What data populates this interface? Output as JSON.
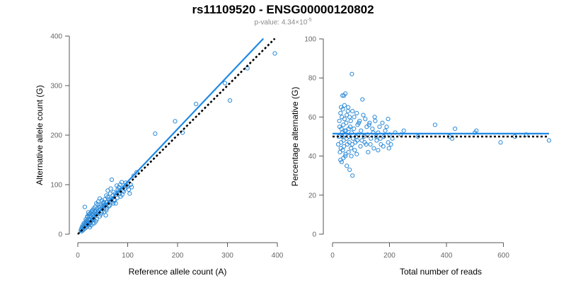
{
  "title": "rs11109520 - ENSG00000120802",
  "subtitle": {
    "prefix": "p-value: 4.34×10",
    "exponent": "-5"
  },
  "colors": {
    "points": "#2e8bd8",
    "fit": "#1e88e5",
    "reference": "#000000",
    "axis": "#555555"
  },
  "chart_data": [
    {
      "type": "scatter",
      "title": "",
      "xlabel": "Reference allele count (A)",
      "ylabel": "Alternative allele count (G)",
      "xlim": [
        0,
        400
      ],
      "ylim": [
        0,
        400
      ],
      "xticks": [
        0,
        100,
        200,
        300,
        400
      ],
      "yticks": [
        0,
        100,
        200,
        300,
        400
      ],
      "fit_line": {
        "x": [
          0,
          372
        ],
        "y": [
          0,
          395
        ]
      },
      "reference_line": {
        "x": [
          0,
          395
        ],
        "y": [
          0,
          395
        ]
      },
      "series": [
        {
          "name": "samples",
          "points": [
            [
              395,
              365
            ],
            [
              340,
              335
            ],
            [
              305,
              270
            ],
            [
              295,
              305
            ],
            [
              237,
              263
            ],
            [
              210,
              205
            ],
            [
              195,
              228
            ],
            [
              155,
              203
            ],
            [
              118,
              125
            ],
            [
              112,
              118
            ],
            [
              108,
              95
            ],
            [
              104,
              82
            ],
            [
              100,
              102
            ],
            [
              97,
              98
            ],
            [
              94,
              92
            ],
            [
              90,
              88
            ],
            [
              88,
              105
            ],
            [
              85,
              100
            ],
            [
              82,
              95
            ],
            [
              80,
              90
            ],
            [
              78,
              98
            ],
            [
              75,
              82
            ],
            [
              72,
              85
            ],
            [
              70,
              78
            ],
            [
              68,
              110
            ],
            [
              68,
              72
            ],
            [
              65,
              82
            ],
            [
              62,
              70
            ],
            [
              60,
              75
            ],
            [
              58,
              65
            ],
            [
              57,
              78
            ],
            [
              55,
              60
            ],
            [
              54,
              70
            ],
            [
              52,
              65
            ],
            [
              50,
              62
            ],
            [
              50,
              55
            ],
            [
              48,
              68
            ],
            [
              47,
              58
            ],
            [
              45,
              50
            ],
            [
              44,
              72
            ],
            [
              43,
              55
            ],
            [
              42,
              48
            ],
            [
              40,
              60
            ],
            [
              40,
              45
            ],
            [
              39,
              52
            ],
            [
              38,
              42
            ],
            [
              37,
              62
            ],
            [
              36,
              48
            ],
            [
              35,
              40
            ],
            [
              35,
              55
            ],
            [
              34,
              45
            ],
            [
              33,
              36
            ],
            [
              32,
              52
            ],
            [
              32,
              30
            ],
            [
              31,
              42
            ],
            [
              30,
              38
            ],
            [
              30,
              48
            ],
            [
              29,
              32
            ],
            [
              28,
              40
            ],
            [
              28,
              28
            ],
            [
              27,
              45
            ],
            [
              26,
              35
            ],
            [
              26,
              25
            ],
            [
              25,
              30
            ],
            [
              25,
              42
            ],
            [
              24,
              22
            ],
            [
              23,
              35
            ],
            [
              23,
              28
            ],
            [
              22,
              40
            ],
            [
              22,
              18
            ],
            [
              21,
              30
            ],
            [
              20,
              25
            ],
            [
              20,
              35
            ],
            [
              19,
              20
            ],
            [
              18,
              28
            ],
            [
              18,
              15
            ],
            [
              17,
              22
            ],
            [
              16,
              30
            ],
            [
              16,
              18
            ],
            [
              15,
              24
            ],
            [
              15,
              12
            ],
            [
              14,
              20
            ],
            [
              14,
              55
            ],
            [
              13,
              16
            ],
            [
              12,
              22
            ],
            [
              12,
              10
            ],
            [
              11,
              15
            ],
            [
              10,
              18
            ],
            [
              10,
              8
            ],
            [
              9,
              12
            ],
            [
              8,
              14
            ],
            [
              8,
              6
            ],
            [
              7,
              10
            ],
            [
              6,
              8
            ],
            [
              56,
              38
            ],
            [
              60,
              88
            ],
            [
              64,
              58
            ],
            [
              73,
              70
            ],
            [
              76,
              62
            ],
            [
              66,
              92
            ],
            [
              86,
              76
            ],
            [
              92,
              86
            ],
            [
              102,
              90
            ],
            [
              46,
              40
            ],
            [
              41,
              66
            ],
            [
              38,
              30
            ],
            [
              33,
              22
            ],
            [
              29,
              48
            ],
            [
              24,
              14
            ],
            [
              21,
              44
            ],
            [
              19,
              36
            ],
            [
              17,
              26
            ],
            [
              44,
              36
            ],
            [
              53,
              45
            ],
            [
              58,
              52
            ],
            [
              63,
              66
            ],
            [
              71,
              62
            ],
            [
              79,
              73
            ],
            [
              84,
              82
            ],
            [
              96,
              104
            ],
            [
              36,
              26
            ],
            [
              27,
              18
            ],
            [
              30,
              22
            ],
            [
              48,
              44
            ],
            [
              52,
              58
            ],
            [
              57,
              48
            ],
            [
              62,
              56
            ],
            [
              67,
              64
            ],
            [
              74,
              68
            ],
            [
              81,
              86
            ],
            [
              89,
              80
            ],
            [
              99,
              96
            ],
            [
              106,
              100
            ]
          ]
        }
      ]
    },
    {
      "type": "scatter",
      "title": "",
      "xlabel": "Total number of reads",
      "ylabel": "Percentage alternative (G)",
      "xlim": [
        0,
        760
      ],
      "ylim": [
        0,
        100
      ],
      "xticks": [
        0,
        200,
        400,
        600
      ],
      "yticks": [
        0,
        20,
        40,
        60,
        80,
        100
      ],
      "fit_line": {
        "x": [
          0,
          760
        ],
        "y": [
          51.5,
          51.5
        ]
      },
      "reference_line": {
        "x": [
          0,
          760
        ],
        "y": [
          50,
          50
        ]
      },
      "series": [
        {
          "name": "samples",
          "points": [
            [
              68,
              82
            ],
            [
              35,
              71
            ],
            [
              45,
              72
            ],
            [
              40,
              71
            ],
            [
              105,
              69
            ],
            [
              30,
              65
            ],
            [
              42,
              66
            ],
            [
              55,
              65
            ],
            [
              70,
              63
            ],
            [
              28,
              62
            ],
            [
              33,
              60
            ],
            [
              50,
              61
            ],
            [
              60,
              60
            ],
            [
              85,
              62
            ],
            [
              95,
              58
            ],
            [
              115,
              59
            ],
            [
              130,
              57
            ],
            [
              150,
              58
            ],
            [
              175,
              57
            ],
            [
              195,
              59
            ],
            [
              25,
              55
            ],
            [
              38,
              56
            ],
            [
              48,
              57
            ],
            [
              62,
              55
            ],
            [
              75,
              54
            ],
            [
              88,
              56
            ],
            [
              100,
              53
            ],
            [
              120,
              55
            ],
            [
              140,
              54
            ],
            [
              160,
              52
            ],
            [
              185,
              53
            ],
            [
              200,
              51
            ],
            [
              22,
              50
            ],
            [
              34,
              52
            ],
            [
              44,
              51
            ],
            [
              58,
              50
            ],
            [
              72,
              49
            ],
            [
              90,
              51
            ],
            [
              110,
              50
            ],
            [
              135,
              49
            ],
            [
              155,
              48
            ],
            [
              180,
              50
            ],
            [
              210,
              49
            ],
            [
              20,
              46
            ],
            [
              30,
              47
            ],
            [
              40,
              45
            ],
            [
              52,
              46
            ],
            [
              65,
              44
            ],
            [
              80,
              47
            ],
            [
              98,
              45
            ],
            [
              118,
              46
            ],
            [
              145,
              44
            ],
            [
              170,
              46
            ],
            [
              195,
              47
            ],
            [
              26,
              42
            ],
            [
              36,
              43
            ],
            [
              46,
              41
            ],
            [
              56,
              42
            ],
            [
              66,
              40
            ],
            [
              78,
              43
            ],
            [
              125,
              42
            ],
            [
              160,
              43
            ],
            [
              28,
              38
            ],
            [
              38,
              39
            ],
            [
              32,
              37
            ],
            [
              50,
              35
            ],
            [
              60,
              33
            ],
            [
              70,
              30
            ],
            [
              45,
              40
            ],
            [
              85,
              41
            ],
            [
              220,
              52
            ],
            [
              240,
              51
            ],
            [
              250,
              53
            ],
            [
              300,
              50
            ],
            [
              360,
              56
            ],
            [
              410,
              50
            ],
            [
              420,
              49
            ],
            [
              430,
              54
            ],
            [
              500,
              52
            ],
            [
              505,
              53
            ],
            [
              590,
              47
            ],
            [
              640,
              50
            ],
            [
              680,
              51
            ],
            [
              760,
              48
            ],
            [
              36,
              64
            ],
            [
              42,
              59
            ],
            [
              54,
              63
            ],
            [
              64,
              58
            ],
            [
              76,
              60
            ],
            [
              92,
              57
            ],
            [
              108,
              61
            ],
            [
              128,
              56
            ],
            [
              148,
              60
            ],
            [
              165,
              55
            ],
            [
              190,
              55
            ],
            [
              24,
              58
            ],
            [
              31,
              54
            ],
            [
              47,
              53
            ],
            [
              57,
              54
            ],
            [
              67,
              52
            ],
            [
              83,
              50
            ],
            [
              103,
              48
            ],
            [
              123,
              51
            ],
            [
              143,
              52
            ],
            [
              168,
              49
            ],
            [
              205,
              46
            ],
            [
              29,
              44
            ],
            [
              39,
              48
            ],
            [
              49,
              49
            ],
            [
              59,
              47
            ],
            [
              69,
              46
            ],
            [
              87,
              48
            ],
            [
              113,
              47
            ],
            [
              133,
              46
            ],
            [
              153,
              50
            ],
            [
              178,
              45
            ],
            [
              198,
              44
            ],
            [
              34,
              50
            ],
            [
              43,
              53
            ]
          ]
        }
      ]
    }
  ]
}
